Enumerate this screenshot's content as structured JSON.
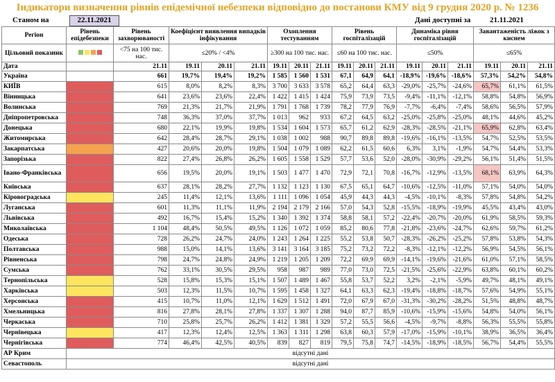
{
  "header": {
    "title": "Індикатори визначення рівнів епідемічної небезпеки відповідно до постанови КМУ від 9 грудня 2020 р. № 1236",
    "as_of_label": "Станом на",
    "as_of_date": "22.11.2021",
    "available_label": "Дані доступні за",
    "available_date": "21.11.2021"
  },
  "table": {
    "columns": [
      "Регіон",
      "Рівень епідебезпеки",
      "Рівень захворюваності",
      "Коефіцієнт виявлення випадків інфікування",
      "Охоплення тестуванням",
      "Рівень госпіталізацій",
      "Динаміка рівня госпіталізацій",
      "Завантаженість ліжок з киснем"
    ],
    "target": {
      "label": "Цільовий показник",
      "values": [
        "<75 на 100 тис. нас.",
        "≤20% / <4%",
        "≥300 на 100 тис. нас.",
        "≤60 на 100 тис. нас.",
        "≤50%",
        "≤65%"
      ]
    },
    "date_row": {
      "label": "Дата",
      "dates": [
        "21.11",
        "19.11",
        "20.11",
        "21.11",
        "19.11",
        "20.11",
        "21.11",
        "19.11",
        "20.11",
        "21.11",
        "19.11",
        "20.11",
        "21.11",
        "19.11",
        "20.11",
        "21.11"
      ]
    },
    "rows": [
      {
        "region": "Україна",
        "values": [
          "661",
          "19,7%",
          "19,4%",
          "19,2%",
          "1 585",
          "1 560",
          "1 531",
          "67,1",
          "64,9",
          "64,1",
          "-18,9%",
          "-19,6%",
          "-18,6%",
          "57,3%",
          "54,2%",
          "54,8%"
        ]
      },
      {
        "region": "КИЇВ",
        "level": "#e05c5c",
        "values": [
          "615",
          "8,0%",
          "8,2%",
          "8,3%",
          "3 700",
          "3 633",
          "3 578",
          "65,2",
          "64,4",
          "63,3",
          "-29,0%",
          "-25,7%",
          "-24,6%",
          "65,7%",
          "61,1%",
          "61,5%"
        ]
      },
      {
        "region": "Вінницька",
        "level": "#e05c5c",
        "values": [
          "641",
          "23,6%",
          "23,6%",
          "22,4%",
          "1 422",
          "1 415",
          "1 424",
          "75,9",
          "73,9",
          "73,5",
          "-9,4%",
          "-11,1%",
          "-12,1%",
          "58,8%",
          "54,8%",
          "56,9%"
        ]
      },
      {
        "region": "Волинська",
        "level": "#e05c5c",
        "values": [
          "769",
          "21,3%",
          "21,7%",
          "21,9%",
          "1 791",
          "1 768",
          "1 739",
          "78,2",
          "77,9",
          "76,9",
          "-7,7%",
          "-6,4%",
          "-7,4%",
          "58,6%",
          "56,5%",
          "57,9%"
        ]
      },
      {
        "region": "Дніпропетровська",
        "level": "#e05c5c",
        "values": [
          "748",
          "36,3%",
          "37,0%",
          "37,7%",
          "1 013",
          "962",
          "933",
          "67,2",
          "64,5",
          "63,2",
          "-25,0%",
          "-25,8%",
          "-25,0%",
          "48,1%",
          "44,6%",
          "45,2%"
        ]
      },
      {
        "region": "Донецька",
        "level": "#e05c5c",
        "values": [
          "680",
          "22,1%",
          "19,9%",
          "19,8%",
          "1 534",
          "1 604",
          "1 573",
          "65,7",
          "61,2",
          "62,9",
          "-28,3%",
          "-28,5%",
          "-21,1%",
          "65,9%",
          "62,8%",
          "63,4%"
        ]
      },
      {
        "region": "Житомирська",
        "level": "#e05c5c",
        "values": [
          "642",
          "28,4%",
          "28,7%",
          "29,1%",
          "1 038",
          "1 002",
          "988",
          "90,7",
          "89,8",
          "89,8",
          "-19,6%",
          "-16,1%",
          "-13,5%",
          "54,7%",
          "52,5%",
          "53,5%"
        ]
      },
      {
        "region": "Закарпатська",
        "level": "#f6a24e",
        "values": [
          "427",
          "20,6%",
          "20,0%",
          "19,8%",
          "1 504",
          "1 079",
          "1 089",
          "62,2",
          "61,5",
          "60,6",
          "6,3%",
          "3,1%",
          "-1,9%",
          "54,7%",
          "54,4%",
          "53,3%"
        ]
      },
      {
        "region": "Запорізька",
        "level": "#e05c5c",
        "values": [
          "822",
          "27,4%",
          "26,8%",
          "26,2%",
          "1 605",
          "1 558",
          "1 529",
          "57,7",
          "53,6",
          "52,0",
          "-28,0%",
          "-30,9%",
          "-29,2%",
          "56,1%",
          "51,4%",
          "51,5%"
        ]
      },
      {
        "region": "Івано-Франківська",
        "level": "#e05c5c",
        "values": [
          "656",
          "19,5%",
          "20,0%",
          "19,1%",
          "1 503",
          "1 477",
          "1 470",
          "72,9",
          "72,1",
          "70,8",
          "-16,7%",
          "-12,9%",
          "-13,5%",
          "68,1%",
          "63,9%",
          "64,3%"
        ]
      },
      {
        "region": "Київська",
        "level": "#e05c5c",
        "values": [
          "637",
          "28,1%",
          "28,2%",
          "27,7%",
          "1 132",
          "1 123",
          "1 130",
          "67,5",
          "65,1",
          "64,7",
          "-10,6%",
          "-12,5%",
          "-11,0%",
          "57,1%",
          "54,0%",
          "54,0%"
        ]
      },
      {
        "region": "Кіровоградська",
        "level": "#fde55e",
        "values": [
          "245",
          "11,4%",
          "12,1%",
          "13,6%",
          "1 111",
          "1 096",
          "1 054",
          "45,9",
          "44,3",
          "44,3",
          "-4,5%",
          "-10,1%",
          "-8,3%",
          "57,8%",
          "54,8%",
          "54,2%"
        ]
      },
      {
        "region": "Луганська",
        "level": "#e05c5c",
        "values": [
          "601",
          "11,3%",
          "11,1%",
          "11,9%",
          "2 194",
          "2 179",
          "2 166",
          "57,0",
          "54,3",
          "52,8",
          "-15,5%",
          "-18,9%",
          "-19,9%",
          "45,5%",
          "43,4%",
          "43,0%"
        ]
      },
      {
        "region": "Львівська",
        "level": "#e05c5c",
        "values": [
          "492",
          "16,7%",
          "15,4%",
          "15,2%",
          "1 340",
          "1 392",
          "1 374",
          "58,8",
          "58,1",
          "57,2",
          "-22,4%",
          "-20,7%",
          "-20,0%",
          "61,9%",
          "58,5%",
          "59,3%"
        ]
      },
      {
        "region": "Миколаївська",
        "level": "#e05c5c",
        "values": [
          "1 104",
          "48,4%",
          "50,5%",
          "49,5%",
          "1 126",
          "1 072",
          "1 059",
          "85,2",
          "80,6",
          "77,8",
          "-21,8%",
          "-23,6%",
          "-24,7%",
          "62,6%",
          "59,7%",
          "61,2%"
        ]
      },
      {
        "region": "Одеська",
        "level": "#e05c5c",
        "values": [
          "728",
          "26,2%",
          "24,7%",
          "24,0%",
          "1 243",
          "1 264",
          "1 225",
          "55,2",
          "53,8",
          "50,7",
          "-28,3%",
          "-26,2%",
          "-25,2%",
          "57,8%",
          "53,8%",
          "54,3%"
        ]
      },
      {
        "region": "Полтавська",
        "level": "#e05c5c",
        "values": [
          "988",
          "15,0%",
          "14,1%",
          "13,6%",
          "3 141",
          "3 164",
          "3 185",
          "75,2",
          "73,2",
          "72,2",
          "-8,3%",
          "-12,1%",
          "-12,2%",
          "56,9%",
          "54,5%",
          "56,1%"
        ]
      },
      {
        "region": "Рівненська",
        "level": "#e05c5c",
        "values": [
          "798",
          "24,7%",
          "24,8%",
          "24,9%",
          "1 219",
          "1 205",
          "1 209",
          "72,2",
          "69,9",
          "69,9",
          "-14,1%",
          "-19,6%",
          "-21,6%",
          "61,0%",
          "57,1%",
          "58,5%"
        ]
      },
      {
        "region": "Сумська",
        "level": "#e05c5c",
        "values": [
          "762",
          "33,1%",
          "30,5%",
          "29,5%",
          "958",
          "987",
          "989",
          "77,0",
          "73,0",
          "72,5",
          "-21,5%",
          "-25,6%",
          "-22,9%",
          "63,8%",
          "60,1%",
          "60,2%"
        ]
      },
      {
        "region": "Тернопільська",
        "level": "#fde55e",
        "values": [
          "528",
          "15,8%",
          "15,3%",
          "15,1%",
          "1 507",
          "1 489",
          "1 467",
          "55,8",
          "53,7",
          "52,2",
          "3,2%",
          "-2,1%",
          "-5,9%",
          "49,7%",
          "48,1%",
          "49,1%"
        ]
      },
      {
        "region": "Харківська",
        "level": "#fde55e",
        "values": [
          "503",
          "12,3%",
          "11,5%",
          "10,7%",
          "1 595",
          "1 458",
          "1 327",
          "64,1",
          "63,3",
          "62,3",
          "-19,4%",
          "-18,8%",
          "-18,7%",
          "57,6%",
          "54,9%",
          "55,1%"
        ]
      },
      {
        "region": "Херсонська",
        "level": "#e05c5c",
        "values": [
          "415",
          "10,7%",
          "11,0%",
          "12,1%",
          "1 629",
          "1 512",
          "1 491",
          "72,0",
          "67,9",
          "67,0",
          "-31,3%",
          "-30,2%",
          "-28,2%",
          "51,5%",
          "48,8%",
          "48,7%"
        ]
      },
      {
        "region": "Хмельницька",
        "level": "#e05c5c",
        "values": [
          "816",
          "27,8%",
          "28,1%",
          "27,8%",
          "1 337",
          "1 307",
          "1 288",
          "94,0",
          "87,7",
          "85,9",
          "-10,6%",
          "-15,9%",
          "-15,6%",
          "54,8%",
          "54,0%",
          "56,1%"
        ]
      },
      {
        "region": "Черкаська",
        "level": "#e05c5c",
        "values": [
          "710",
          "25,8%",
          "25,7%",
          "26,2%",
          "1 412",
          "1 381",
          "1 329",
          "57,2",
          "55,5",
          "56,6",
          "-4,5%",
          "-9,7%",
          "-8,8%",
          "56,3%",
          "55,5%",
          "55,8%"
        ]
      },
      {
        "region": "Чернівецька",
        "level": "#fde55e",
        "values": [
          "417",
          "12,3%",
          "12,4%",
          "12,5%",
          "1 363",
          "1 311",
          "1 298",
          "63,8",
          "60,3",
          "57,9",
          "-17,0%",
          "-15,9%",
          "-10,1%",
          "38,9%",
          "36,5%",
          "36,4%"
        ]
      },
      {
        "region": "Чернігівська",
        "level": "#e05c5c",
        "values": [
          "774",
          "46,4%",
          "42,5%",
          "40,5%",
          "839",
          "827",
          "819",
          "79,5",
          "75,8",
          "74,7",
          "-14,5%",
          "-18,9%",
          "-18,5%",
          "56,7%",
          "54,4%",
          "55,5%"
        ]
      }
    ],
    "missing_rows": [
      {
        "region": "АР Крим",
        "text": "відсутні дані"
      },
      {
        "region": "Севастополь",
        "text": "відсутні дані"
      }
    ]
  }
}
